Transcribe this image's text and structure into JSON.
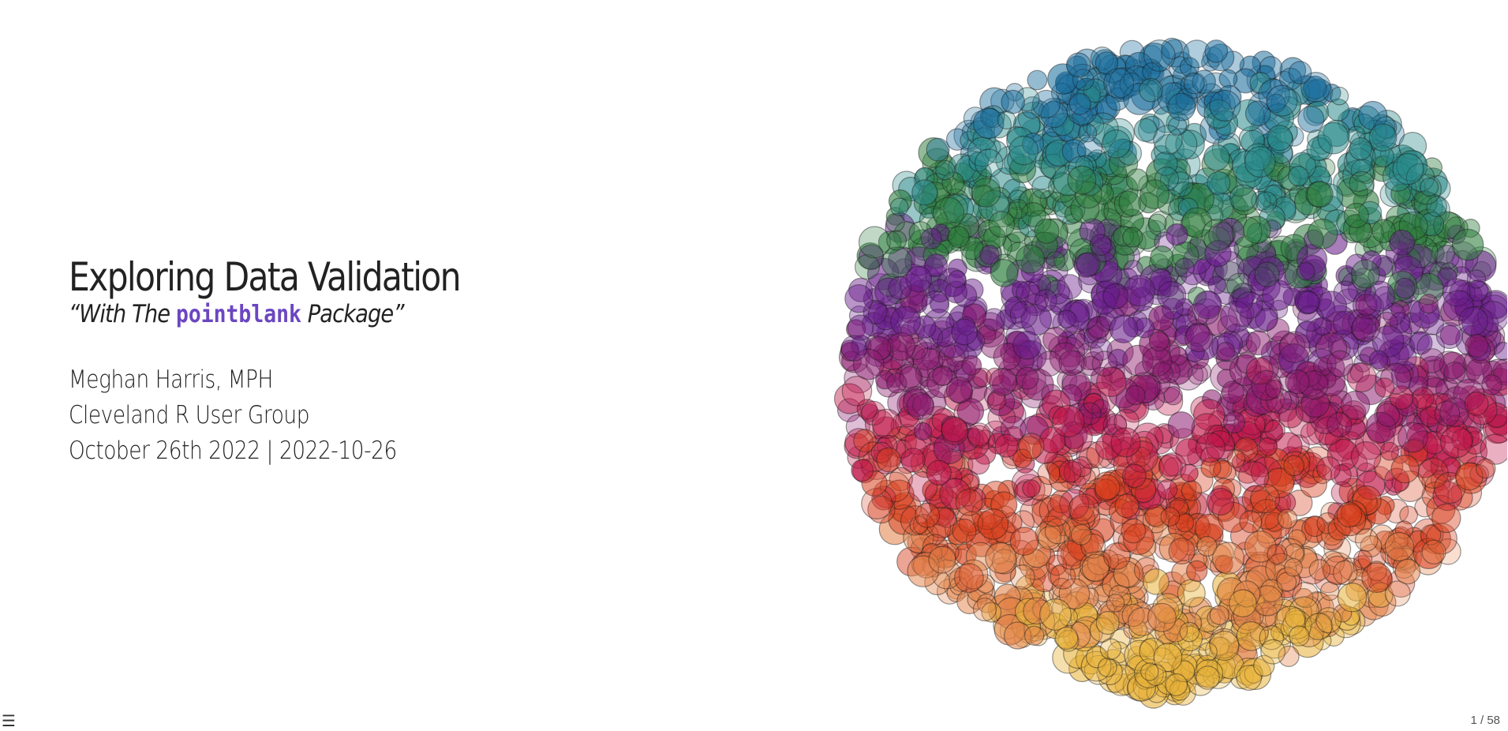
{
  "slide": {
    "title": "Exploring Data Validation",
    "subtitle_prefix": "“With The ",
    "subtitle_code": "pointblank",
    "subtitle_suffix": " Package”",
    "author": "Meghan Harris, MPH",
    "event": "Cleveland R User Group",
    "date": "October 26th 2022 | 2022-10-26"
  },
  "controls": {
    "menu_icon": "☰",
    "slide_number": "1 / 58"
  },
  "colors": {
    "title_text": "#222222",
    "code_accent": "#6b46c1",
    "art_bands": [
      "#1d6f9e",
      "#2a8a8a",
      "#2e7d3e",
      "#6a1e8c",
      "#8b1a6e",
      "#c0184a",
      "#d8401f",
      "#e3834a",
      "#e8b23a"
    ]
  },
  "icons": {
    "menu": "hamburger-menu-icon",
    "artwork": "circle-cluster-art"
  }
}
